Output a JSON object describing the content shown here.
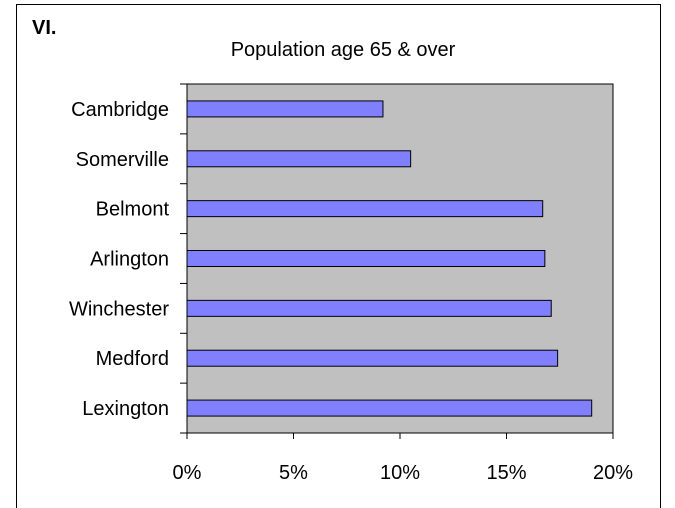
{
  "section_label": "VI.",
  "colors": {
    "plot_bg": "#c0c0c0",
    "bar_fill": "#8080ff",
    "bar_stroke": "#000000"
  },
  "chart_data": {
    "type": "bar",
    "orientation": "horizontal",
    "title": "Population age 65 & over",
    "xlabel": "",
    "ylabel": "",
    "categories": [
      "Cambridge",
      "Somerville",
      "Belmont",
      "Arlington",
      "Winchester",
      "Medford",
      "Lexington"
    ],
    "values": [
      9.2,
      10.5,
      16.7,
      16.8,
      17.1,
      17.4,
      19.0
    ],
    "xlim": [
      0,
      20
    ],
    "xticks": [
      "0%",
      "5%",
      "10%",
      "15%",
      "20%"
    ],
    "grid": false,
    "legend": "none"
  }
}
